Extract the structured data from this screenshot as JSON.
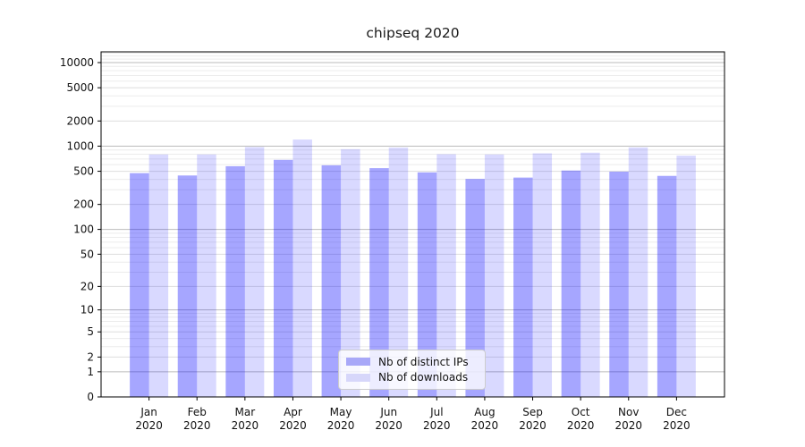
{
  "chart_data": {
    "type": "bar",
    "title": "chipseq 2020",
    "categories": [
      "Jan",
      "Feb",
      "Mar",
      "Apr",
      "May",
      "Jun",
      "Jul",
      "Aug",
      "Sep",
      "Oct",
      "Nov",
      "Dec"
    ],
    "x_year_line": "2020",
    "series": [
      {
        "name": "Nb of distinct IPs",
        "color": "#a8a8f8",
        "bar_fill": "rgba(0,0,255,0.35)",
        "values": [
          475,
          445,
          575,
          685,
          590,
          545,
          485,
          405,
          420,
          510,
          495,
          440
        ]
      },
      {
        "name": "Nb of downloads",
        "color": "#d7d7fa",
        "bar_fill": "rgba(0,0,255,0.15)",
        "values": [
          795,
          795,
          975,
          1200,
          920,
          960,
          800,
          795,
          820,
          835,
          965,
          770
        ]
      }
    ],
    "yscale": "log10(1+v)",
    "ylim": [
      0,
      13400
    ],
    "y_ticks": [
      10000,
      5000,
      2000,
      1000,
      500,
      200,
      100,
      50,
      20,
      10,
      5,
      2,
      1,
      0
    ],
    "y_minor_ticks": [
      3,
      4,
      6,
      7,
      8,
      9,
      30,
      40,
      60,
      70,
      80,
      90,
      300,
      400,
      600,
      700,
      800,
      900,
      3000,
      4000,
      6000,
      7000,
      8000,
      9000,
      11000,
      12000,
      13000
    ],
    "grid": true,
    "legend_position": "lower center",
    "colors": {
      "spine": "#000000",
      "grid_major": "#bbbbbb",
      "grid_mid": "#dddddd",
      "grid_minor": "#ececec",
      "text": "#111111"
    }
  }
}
